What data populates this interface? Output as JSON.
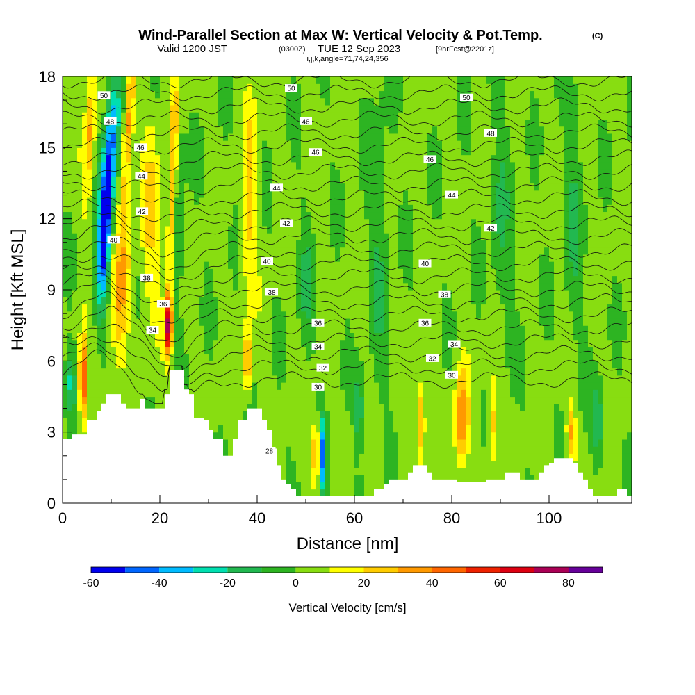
{
  "header": {
    "title_main": "Wind-Parallel Section at Max W: Vertical Velocity & Pot.Temp.",
    "title_mark": "(C)",
    "valid_prefix": "Valid 1200 JST",
    "valid_utc": "(0300Z)",
    "valid_date": "TUE 12 Sep 2023",
    "forecast": "[9hrFcst@2201z]",
    "indices": "i,j,k,angle=71,74,24,356"
  },
  "chart_data": {
    "type": "heatmap",
    "xlabel": "Distance [nm]",
    "ylabel": "Height [Kft MSL]",
    "xlim": [
      0,
      117
    ],
    "ylim": [
      0,
      18
    ],
    "x_ticks": [
      0,
      20,
      40,
      60,
      80,
      100
    ],
    "y_ticks": [
      0,
      3,
      6,
      9,
      12,
      15,
      18
    ],
    "x_tick_labels": [
      "0",
      "20",
      "40",
      "60",
      "80",
      "100"
    ],
    "y_tick_labels": [
      "0",
      "3",
      "6",
      "9",
      "12",
      "15",
      "18"
    ],
    "colorbar": {
      "label": "Vertical Velocity [cm/s]",
      "ticks": [
        -60,
        -40,
        -20,
        0,
        20,
        40,
        60,
        80
      ],
      "tick_labels": [
        "-60",
        "-40",
        "-20",
        "0",
        "20",
        "40",
        "60",
        "80"
      ],
      "bounds": [
        -60,
        90
      ],
      "step": 10,
      "colors": [
        "#0000ee",
        "#0066ff",
        "#00bbff",
        "#00dfb0",
        "#22b850",
        "#2db422",
        "#88dd11",
        "#ffff00",
        "#ffcc00",
        "#ff9900",
        "#ff6600",
        "#ee2200",
        "#dd0011",
        "#aa0055",
        "#660099"
      ]
    },
    "terrain_kft": [
      [
        0,
        2.7
      ],
      [
        1,
        2.7
      ],
      [
        2,
        2.9
      ],
      [
        4,
        2.9
      ],
      [
        5,
        3.5
      ],
      [
        6,
        3.5
      ],
      [
        7,
        3.9
      ],
      [
        8,
        4.2
      ],
      [
        9,
        4.6
      ],
      [
        11,
        4.6
      ],
      [
        12,
        4.2
      ],
      [
        13,
        4.0
      ],
      [
        15,
        4.0
      ],
      [
        16,
        4.4
      ],
      [
        17,
        4.0
      ],
      [
        20,
        4.0
      ],
      [
        21,
        4.6
      ],
      [
        22,
        5.6
      ],
      [
        24,
        5.6
      ],
      [
        25,
        4.8
      ],
      [
        26,
        4.6
      ],
      [
        27,
        3.6
      ],
      [
        29,
        3.5
      ],
      [
        30,
        3.1
      ],
      [
        31,
        2.7
      ],
      [
        32,
        2.7
      ],
      [
        33,
        2.0
      ],
      [
        34,
        2.0
      ],
      [
        35,
        2.7
      ],
      [
        36,
        3.5
      ],
      [
        38,
        4.0
      ],
      [
        40,
        4.0
      ],
      [
        41,
        3.5
      ],
      [
        42,
        3.1
      ],
      [
        43,
        2.3
      ],
      [
        44,
        1.6
      ],
      [
        45,
        1.0
      ],
      [
        46,
        0.8
      ],
      [
        47,
        0.6
      ],
      [
        48,
        0.3
      ],
      [
        60,
        0.3
      ],
      [
        63,
        0.3
      ],
      [
        64,
        0.6
      ],
      [
        66,
        0.8
      ],
      [
        67,
        1.0
      ],
      [
        70,
        1.0
      ],
      [
        71,
        1.3
      ],
      [
        72,
        1.6
      ],
      [
        74,
        1.6
      ],
      [
        75,
        1.3
      ],
      [
        76,
        1.0
      ],
      [
        80,
        1.0
      ],
      [
        81,
        0.9
      ],
      [
        86,
        0.9
      ],
      [
        87,
        1.0
      ],
      [
        90,
        1.0
      ],
      [
        91,
        1.3
      ],
      [
        93,
        1.3
      ],
      [
        94,
        1.0
      ],
      [
        96,
        1.0
      ],
      [
        98,
        1.3
      ],
      [
        99,
        1.6
      ],
      [
        100,
        1.7
      ],
      [
        101,
        1.9
      ],
      [
        104,
        1.9
      ],
      [
        105,
        1.7
      ],
      [
        106,
        1.3
      ],
      [
        107,
        1.0
      ],
      [
        108,
        0.6
      ],
      [
        109,
        0.3
      ],
      [
        113,
        0.3
      ],
      [
        114,
        0.6
      ],
      [
        115,
        0.6
      ],
      [
        116,
        0.3
      ],
      [
        117,
        0.3
      ]
    ],
    "features": [
      {
        "x": 9.5,
        "y": 14.0,
        "sx": 1.5,
        "sy": 4.0,
        "w": -55,
        "tilt": 0.35
      },
      {
        "x": 8.5,
        "y": 10.5,
        "sx": 1.3,
        "sy": 2.5,
        "w": -35,
        "tilt": 0.3
      },
      {
        "x": 5.5,
        "y": 15.5,
        "sx": 1.0,
        "sy": 3.0,
        "w": 28,
        "tilt": 0.2
      },
      {
        "x": 13.5,
        "y": 16.0,
        "sx": 1.0,
        "sy": 3.0,
        "w": 35,
        "tilt": 0.3
      },
      {
        "x": 12.0,
        "y": 9.0,
        "sx": 1.8,
        "sy": 3.0,
        "w": 30,
        "tilt": 0.3
      },
      {
        "x": 18.0,
        "y": 12.0,
        "sx": 1.8,
        "sy": 3.5,
        "w": 20,
        "tilt": 0.1
      },
      {
        "x": 21.8,
        "y": 7.5,
        "sx": 0.7,
        "sy": 1.2,
        "w": 75,
        "tilt": 0.0
      },
      {
        "x": 22.5,
        "y": 13.0,
        "sx": 1.0,
        "sy": 5.0,
        "w": 28,
        "tilt": 0.15
      },
      {
        "x": 24.0,
        "y": 12.0,
        "sx": 1.0,
        "sy": 4.0,
        "w": -18,
        "tilt": 0.1
      },
      {
        "x": 4.2,
        "y": 5.2,
        "sx": 0.8,
        "sy": 1.8,
        "w": 55,
        "tilt": 0.0
      },
      {
        "x": 1.5,
        "y": 5.0,
        "sx": 1.2,
        "sy": 1.5,
        "w": -25,
        "tilt": 0.0
      },
      {
        "x": 38.0,
        "y": 6.0,
        "sx": 0.8,
        "sy": 1.2,
        "w": 40,
        "tilt": 0.0
      },
      {
        "x": 38.5,
        "y": 13.0,
        "sx": 1.5,
        "sy": 4.5,
        "w": 20,
        "tilt": 0.1
      },
      {
        "x": 53.5,
        "y": 2.0,
        "sx": 0.7,
        "sy": 1.5,
        "w": -45,
        "tilt": 0.0
      },
      {
        "x": 52.0,
        "y": 2.2,
        "sx": 0.6,
        "sy": 1.2,
        "w": 55,
        "tilt": 0.0
      },
      {
        "x": 61.0,
        "y": 4.0,
        "sx": 0.8,
        "sy": 1.5,
        "w": -25,
        "tilt": 0.0
      },
      {
        "x": 82.0,
        "y": 3.5,
        "sx": 1.5,
        "sy": 2.0,
        "w": 38,
        "tilt": 0.0
      },
      {
        "x": 73.5,
        "y": 3.5,
        "sx": 1.0,
        "sy": 1.8,
        "w": 30,
        "tilt": 0.0
      },
      {
        "x": 88.5,
        "y": 3.5,
        "sx": 1.0,
        "sy": 2.0,
        "w": 25,
        "tilt": 0.0
      },
      {
        "x": 104.5,
        "y": 3.0,
        "sx": 1.0,
        "sy": 1.2,
        "w": 30,
        "tilt": 0.0
      },
      {
        "x": 110.0,
        "y": 3.5,
        "sx": 1.2,
        "sy": 1.5,
        "w": -22,
        "tilt": 0.0
      },
      {
        "x": 65.0,
        "y": 11.0,
        "sx": 2.0,
        "sy": 6.0,
        "w": -12,
        "tilt": 0.0
      },
      {
        "x": 90.0,
        "y": 12.0,
        "sx": 2.0,
        "sy": 6.0,
        "w": -12,
        "tilt": 0.0
      },
      {
        "x": 105.0,
        "y": 12.0,
        "sx": 2.0,
        "sy": 6.0,
        "w": -12,
        "tilt": 0.0
      },
      {
        "x": 50.0,
        "y": 9.0,
        "sx": 1.5,
        "sy": 3.0,
        "w": -12,
        "tilt": 0.0
      }
    ],
    "contour_labels": [
      {
        "text": "50",
        "x": 8.5,
        "y": 17.2
      },
      {
        "text": "50",
        "x": 47.0,
        "y": 17.5
      },
      {
        "text": "50",
        "x": 83.0,
        "y": 17.1
      },
      {
        "text": "48",
        "x": 9.8,
        "y": 16.1
      },
      {
        "text": "48",
        "x": 50.0,
        "y": 16.1
      },
      {
        "text": "48",
        "x": 88.0,
        "y": 15.6
      },
      {
        "text": "46",
        "x": 16.0,
        "y": 15.0
      },
      {
        "text": "46",
        "x": 52.0,
        "y": 14.8
      },
      {
        "text": "46",
        "x": 75.5,
        "y": 14.5
      },
      {
        "text": "44",
        "x": 16.2,
        "y": 13.8
      },
      {
        "text": "44",
        "x": 44.0,
        "y": 13.3
      },
      {
        "text": "44",
        "x": 80.0,
        "y": 13.0
      },
      {
        "text": "42",
        "x": 16.3,
        "y": 12.3
      },
      {
        "text": "42",
        "x": 46.0,
        "y": 11.8
      },
      {
        "text": "42",
        "x": 88.0,
        "y": 11.6
      },
      {
        "text": "40",
        "x": 10.5,
        "y": 11.1
      },
      {
        "text": "40",
        "x": 42.0,
        "y": 10.2
      },
      {
        "text": "40",
        "x": 74.5,
        "y": 10.1
      },
      {
        "text": "38",
        "x": 17.3,
        "y": 9.5
      },
      {
        "text": "38",
        "x": 43.0,
        "y": 8.9
      },
      {
        "text": "38",
        "x": 78.5,
        "y": 8.8
      },
      {
        "text": "36",
        "x": 20.7,
        "y": 8.4
      },
      {
        "text": "36",
        "x": 52.5,
        "y": 7.6
      },
      {
        "text": "36",
        "x": 74.5,
        "y": 7.6
      },
      {
        "text": "34",
        "x": 18.5,
        "y": 7.3
      },
      {
        "text": "34",
        "x": 52.5,
        "y": 6.6
      },
      {
        "text": "34",
        "x": 80.5,
        "y": 6.7
      },
      {
        "text": "32",
        "x": 53.5,
        "y": 5.7
      },
      {
        "text": "32",
        "x": 76.0,
        "y": 6.1
      },
      {
        "text": "30",
        "x": 52.5,
        "y": 4.9
      },
      {
        "text": "30",
        "x": 80.0,
        "y": 5.4
      },
      {
        "text": "28",
        "x": 42.5,
        "y": 2.2
      }
    ]
  }
}
